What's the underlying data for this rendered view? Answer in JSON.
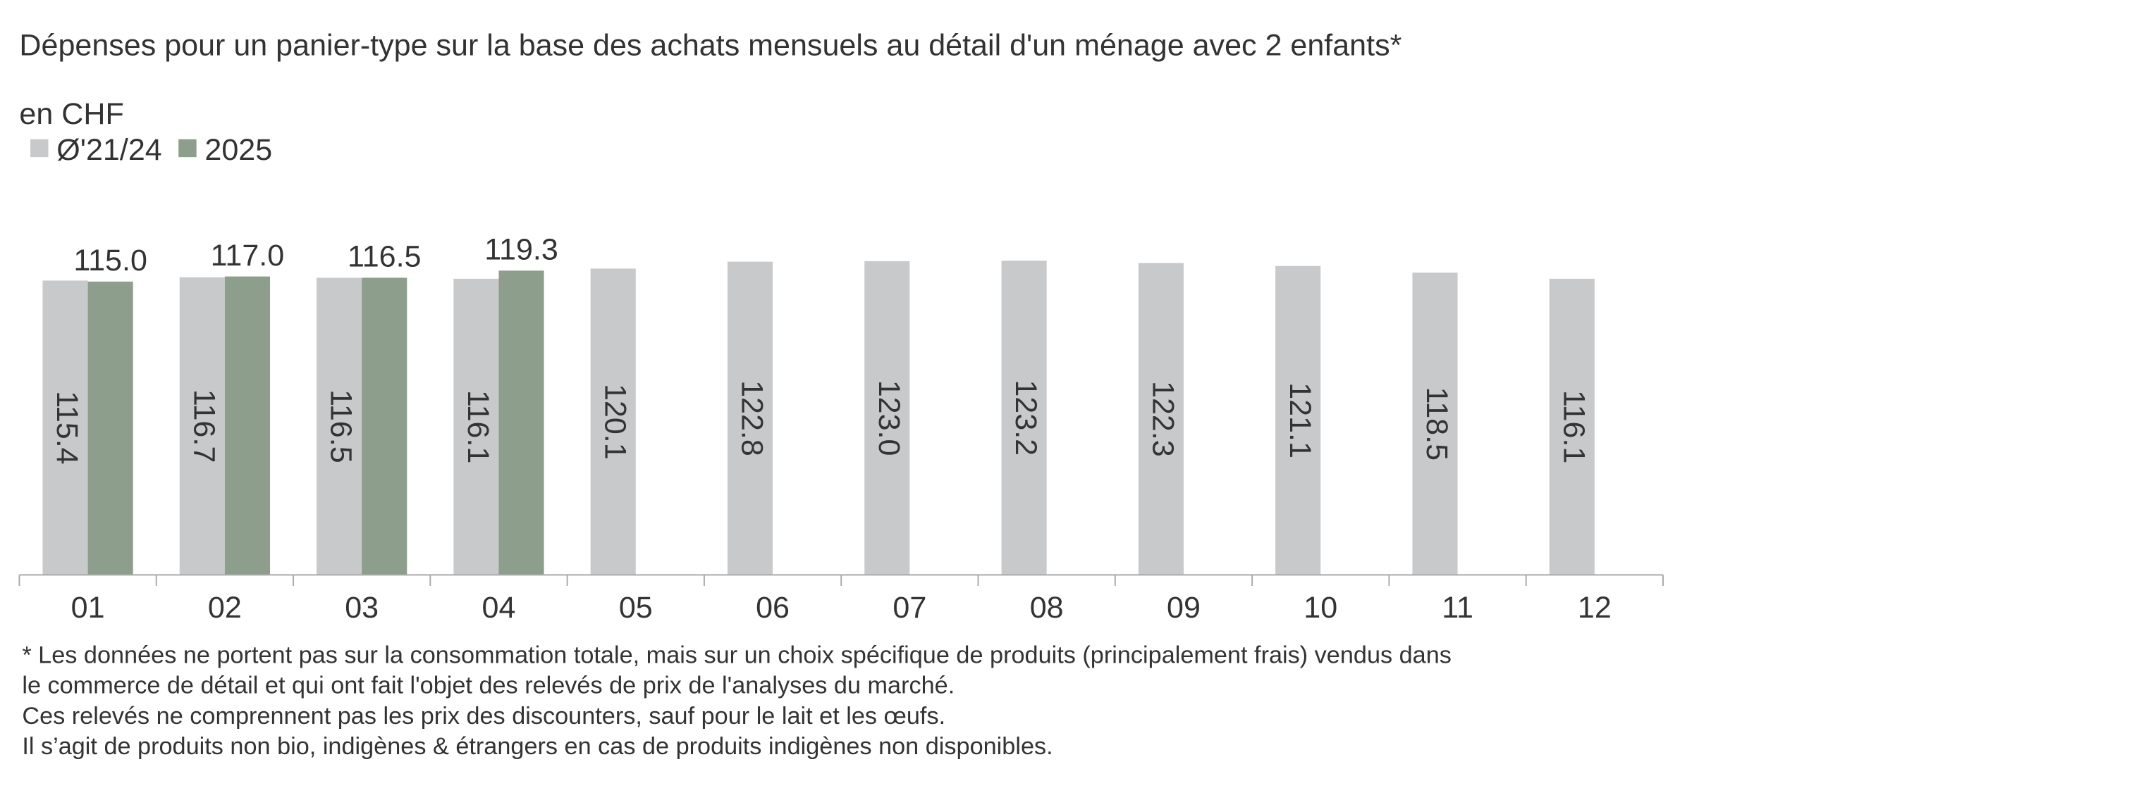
{
  "chart_data": {
    "type": "bar",
    "title": "Dépenses pour un panier-type sur la base des achats mensuels au détail d'un ménage avec 2 enfants*",
    "subtitle": "en CHF",
    "categories": [
      "01",
      "02",
      "03",
      "04",
      "05",
      "06",
      "07",
      "08",
      "09",
      "10",
      "11",
      "12"
    ],
    "series": [
      {
        "name": "Ø'21/24",
        "color": "#c8c9cb",
        "values": [
          115.4,
          116.7,
          116.5,
          116.1,
          120.1,
          122.8,
          123.0,
          123.2,
          122.3,
          121.1,
          118.5,
          116.1
        ],
        "value_labels": [
          "115.4",
          "116.7",
          "116.5",
          "116.1",
          "120.1",
          "122.8",
          "123.0",
          "123.2",
          "122.3",
          "121.1",
          "118.5",
          "116.1"
        ]
      },
      {
        "name": "2025",
        "color": "#8d9e8c",
        "values": [
          115.0,
          117.0,
          116.5,
          119.3,
          null,
          null,
          null,
          null,
          null,
          null,
          null,
          null
        ],
        "value_labels": [
          "115.0",
          "117.0",
          "116.5",
          "119.3",
          null,
          null,
          null,
          null,
          null,
          null,
          null,
          null
        ]
      }
    ],
    "ylim": [
      0,
      140
    ],
    "legend": "top-left",
    "footnote": [
      "* Les données ne portent pas sur la consommation totale, mais sur un choix spécifique de produits (principalement frais) vendus dans",
      "le commerce de détail et qui ont fait l'objet des relevés de prix de l'analyses du marché.",
      "Ces relevés ne comprennent pas les prix des discounters, sauf pour le lait et les œufs.",
      "Il s’agit de produits non bio, indigènes & étrangers en cas de produits indigènes non disponibles."
    ]
  }
}
